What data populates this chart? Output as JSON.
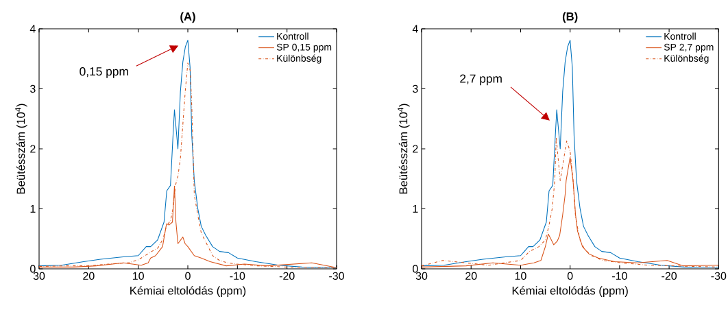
{
  "chart_data": [
    {
      "type": "line",
      "title": "(A)",
      "xlabel": "Kémiai eltolódás (ppm)",
      "ylabel": "Beütésszám (10$^{4}$)",
      "xlim": [
        30,
        -30
      ],
      "ylim": [
        0,
        4
      ],
      "xticks": [
        30,
        20,
        10,
        0,
        -10,
        -20,
        -30
      ],
      "yticks": [
        0,
        1,
        2,
        3,
        4
      ],
      "legend": "top right",
      "annotations": [
        "0,15 ppm"
      ],
      "series": [
        {
          "name": "Kontroll",
          "color": "#0072bd",
          "line_style": "solid",
          "x": [
            30,
            25.5,
            21,
            17.6,
            13,
            10,
            8.4,
            7.5,
            6.1,
            4.8,
            4.25,
            3.5,
            3.0,
            2.7,
            2.0,
            1.5,
            1.0,
            0.5,
            0,
            -0.45,
            -0.8,
            -1.3,
            -2,
            -2.7,
            -3.6,
            -5,
            -6.4,
            -8.2,
            -10,
            -13.7,
            -18.4,
            -23,
            -30
          ],
          "values": [
            0.05,
            0.06,
            0.12,
            0.16,
            0.2,
            0.22,
            0.37,
            0.37,
            0.48,
            0.78,
            1.3,
            1.39,
            2.2,
            2.65,
            2.0,
            2.95,
            3.45,
            3.7,
            3.81,
            3.36,
            2.22,
            1.47,
            1.01,
            0.71,
            0.56,
            0.37,
            0.29,
            0.27,
            0.18,
            0.12,
            0.06,
            0.03,
            0.02
          ]
        },
        {
          "name": "SP 0,15 ppm",
          "color": "#d95319",
          "line_style": "solid",
          "x": [
            30,
            23,
            18.5,
            13,
            9.4,
            8,
            7.5,
            6.5,
            5.1,
            4.3,
            3.8,
            3.1,
            2.7,
            2.4,
            2.0,
            1.0,
            0.55,
            0,
            -1.3,
            -2.7,
            -4.5,
            -7.75,
            -11.4,
            -16,
            -25,
            -30
          ],
          "values": [
            0.03,
            0.03,
            0.05,
            0.1,
            0.06,
            0.1,
            0.18,
            0.22,
            0.37,
            0.75,
            0.73,
            0.78,
            1.38,
            0.78,
            0.42,
            0.53,
            0.42,
            0.37,
            0.22,
            0.18,
            0.12,
            0.05,
            0.08,
            0.05,
            0.1,
            0.02
          ]
        },
        {
          "name": "Különbség",
          "color": "#d95319",
          "line_style": "dashdot",
          "x": [
            30,
            25,
            20,
            16,
            12,
            10,
            9,
            7.5,
            6,
            5,
            4.3,
            3.5,
            3.0,
            2.5,
            2.0,
            1.5,
            1.0,
            0.5,
            0,
            -0.5,
            -0.8,
            -1.3,
            -2,
            -2.7,
            -3.6,
            -5,
            -6.4,
            -8,
            -10,
            -14,
            -20,
            -30
          ],
          "values": [
            0.04,
            0.05,
            0.05,
            0.08,
            0.1,
            0.15,
            0.2,
            0.28,
            0.35,
            0.5,
            0.72,
            0.8,
            1.0,
            1.39,
            1.54,
            1.84,
            2.41,
            2.98,
            3.43,
            3.3,
            2.7,
            1.24,
            0.9,
            0.6,
            0.45,
            0.22,
            0.14,
            0.1,
            0.08,
            0.05,
            0.03,
            0.02
          ]
        }
      ]
    },
    {
      "type": "line",
      "title": "(B)",
      "xlabel": "Kémiai eltolódás (ppm)",
      "ylabel": "Beütésszám (10$^{4}$)",
      "xlim": [
        30,
        -30
      ],
      "ylim": [
        0,
        4
      ],
      "xticks": [
        30,
        20,
        10,
        0,
        -10,
        -20,
        -30
      ],
      "yticks": [
        0,
        1,
        2,
        3,
        4
      ],
      "legend": "top right",
      "annotations": [
        "2,7 ppm"
      ],
      "series": [
        {
          "name": "Kontroll",
          "color": "#0072bd",
          "line_style": "solid",
          "x": [
            30,
            25.5,
            21,
            17.6,
            13,
            10,
            8.4,
            7.5,
            6.1,
            4.8,
            4.25,
            3.5,
            3.0,
            2.7,
            2.0,
            1.5,
            1.0,
            0.5,
            0,
            -0.45,
            -0.8,
            -1.3,
            -2,
            -2.7,
            -3.6,
            -5,
            -6.4,
            -8.2,
            -10,
            -13.7,
            -18.4,
            -23,
            -30
          ],
          "values": [
            0.05,
            0.06,
            0.12,
            0.16,
            0.2,
            0.22,
            0.37,
            0.37,
            0.48,
            0.78,
            1.3,
            1.39,
            2.2,
            2.65,
            2.0,
            2.95,
            3.45,
            3.7,
            3.81,
            3.36,
            2.22,
            1.47,
            1.01,
            0.71,
            0.56,
            0.37,
            0.29,
            0.27,
            0.18,
            0.12,
            0.06,
            0.03,
            0.02
          ]
        },
        {
          "name": "SP 2,7 ppm",
          "color": "#d95319",
          "line_style": "solid",
          "x": [
            30,
            21,
            15.6,
            10,
            7.3,
            5.9,
            5,
            4.4,
            3.9,
            3.3,
            2.6,
            2.1,
            1.5,
            1.0,
            0.8,
            0,
            -0.6,
            -1.1,
            -1.5,
            -2.5,
            -3.8,
            -5.7,
            -9,
            -13.6,
            -19.6,
            -22.8,
            -30
          ],
          "values": [
            0.03,
            0.05,
            0.1,
            0.06,
            0.1,
            0.14,
            0.37,
            0.58,
            0.5,
            0.4,
            0.46,
            0.56,
            0.9,
            1.24,
            1.47,
            1.86,
            1.47,
            0.9,
            0.63,
            0.37,
            0.25,
            0.18,
            0.12,
            0.1,
            0.14,
            0.05,
            0.06
          ]
        },
        {
          "name": "Különbség",
          "color": "#d95319",
          "line_style": "dashdot",
          "x": [
            30,
            25.7,
            16.5,
            10,
            8.2,
            6.3,
            5,
            4.3,
            3.6,
            3.1,
            2.8,
            2.0,
            0.7,
            0,
            -0.6,
            -1.1,
            -2,
            -2.9,
            -4.3,
            -6.6,
            -10.3,
            -15.9,
            -30
          ],
          "values": [
            0.05,
            0.14,
            0.06,
            0.14,
            0.29,
            0.37,
            0.48,
            0.71,
            1.01,
            1.47,
            2.19,
            1.47,
            2.13,
            1.96,
            1.47,
            0.86,
            0.48,
            0.33,
            0.22,
            0.14,
            0.1,
            0.06,
            0.03
          ]
        }
      ]
    }
  ]
}
